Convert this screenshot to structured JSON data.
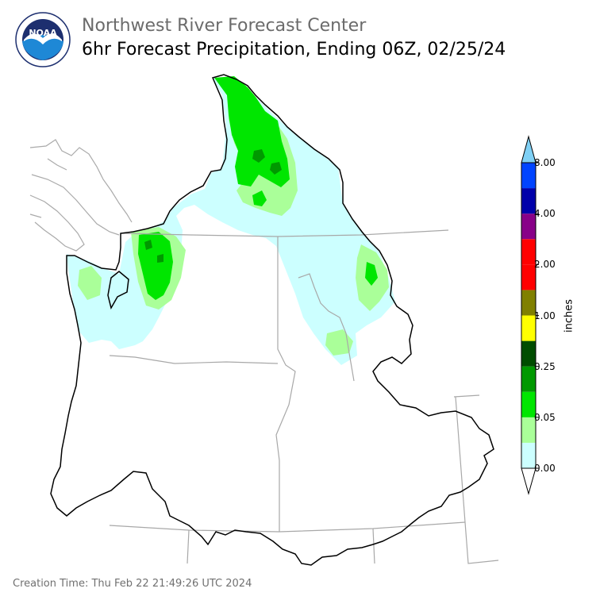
{
  "header": {
    "agency": "Northwest River Forecast Center",
    "product": "6hr Forecast Precipitation, Ending 06Z, 02/25/24"
  },
  "logo": {
    "name": "noaa-logo",
    "text": "NOAA",
    "ring_text": "NATIONAL OCEANIC AND ATMOSPHERIC ADMINISTRATION · U.S. DEPARTMENT OF COMMERCE"
  },
  "legend": {
    "unit": "inches",
    "ticks": [
      "8.00",
      "4.00",
      "2.00",
      "1.00",
      "0.25",
      "0.05",
      "0.00"
    ],
    "colors": [
      "#ffffff",
      "#ccffff",
      "#aaff99",
      "#00e600",
      "#009900",
      "#004d00",
      "#ffff00",
      "#808000",
      "#ff0000",
      "#ff0000",
      "#880088",
      "#0000aa",
      "#0044ff",
      "#7fd0f5"
    ]
  },
  "footer": {
    "creation": "Creation Time: Thu Feb 22 21:49:26 UTC 2024"
  }
}
